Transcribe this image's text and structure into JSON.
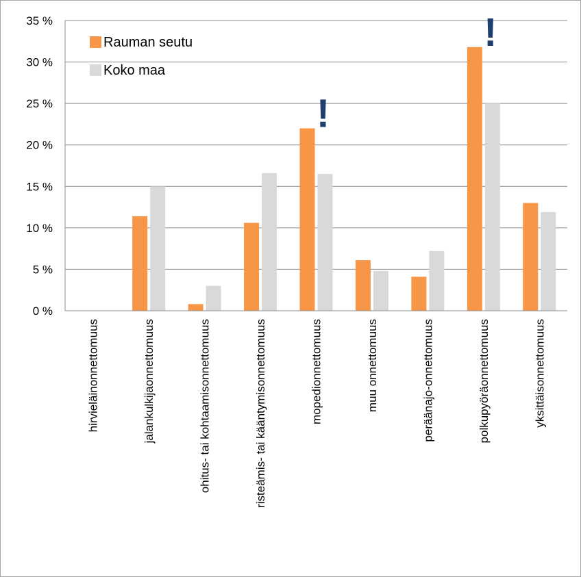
{
  "chart_data": {
    "type": "bar",
    "categories": [
      "hirvieläinonnettomuus",
      "jalankulkijaonnettomuus",
      "ohitus- tai kohtaamisonnettomuus",
      "risteämis- tai kääntymisonnettomuus",
      "mopedionnettomuus",
      "muu onnettomuus",
      "peräänajo-onnettomuus",
      "polkupyöräonnettomuus",
      "yksittäisonnettomuus"
    ],
    "series": [
      {
        "name": "Rauman seutu",
        "color": "#f79646",
        "values": [
          0,
          11.4,
          0.8,
          10.6,
          22.0,
          6.1,
          4.1,
          31.8,
          13.0
        ]
      },
      {
        "name": "Koko maa",
        "color": "#d9d9d9",
        "values": [
          0,
          15.0,
          3.0,
          16.6,
          16.5,
          4.8,
          7.2,
          25.0,
          11.9
        ]
      }
    ],
    "ylim": [
      0,
      35
    ],
    "yticks": [
      "0 %",
      "5 %",
      "10 %",
      "15 %",
      "20 %",
      "25 %",
      "30 %",
      "35 %"
    ],
    "ytick_values": [
      0,
      5,
      10,
      15,
      20,
      25,
      30,
      35
    ],
    "grid": true,
    "legend_position": "top-left",
    "annotations": [
      {
        "text": "!",
        "category_index": 4,
        "color": "#1f3f6e"
      },
      {
        "text": "!",
        "category_index": 7,
        "color": "#1f3f6e"
      }
    ],
    "title": "",
    "xlabel": "",
    "ylabel": ""
  }
}
